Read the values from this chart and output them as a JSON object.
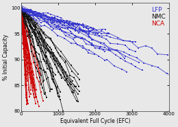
{
  "xlabel": "Equivalent Full Cycle (EFC)",
  "ylabel": "% Initial Capacity",
  "xlim": [
    0,
    4000
  ],
  "ylim": [
    80,
    101
  ],
  "yticks": [
    80,
    85,
    90,
    95,
    100
  ],
  "xticks": [
    0,
    1000,
    2000,
    3000,
    4000
  ],
  "legend_labels": [
    "LFP",
    "NMC",
    "NCA"
  ],
  "legend_colors": [
    "#3333cc",
    "#111111",
    "#cc0000"
  ],
  "bg_color": "#e8e8e8",
  "lfp_color": "#3333cc",
  "nmc_color": "#111111",
  "nca_color": "#cc0000",
  "marker": "s",
  "markersize": 1.8,
  "linewidth": 0.6,
  "n_lfp": 16,
  "n_nmc": 22,
  "n_nca": 25
}
